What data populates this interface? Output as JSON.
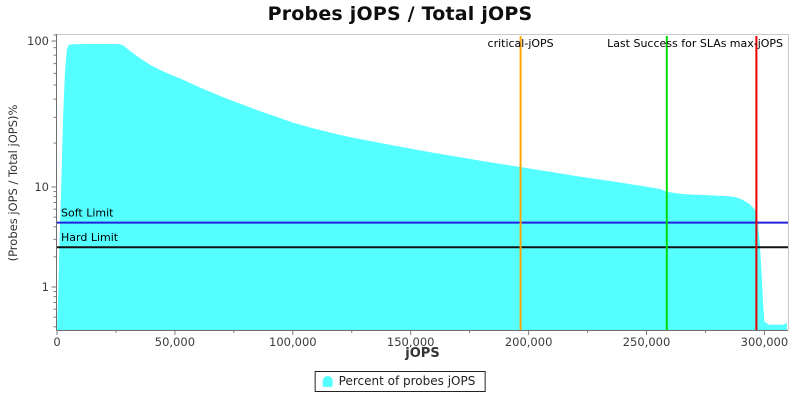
{
  "chart_data": {
    "type": "area",
    "title": "Probes jOPS / Total jOPS",
    "x_axis": {
      "label": "jOPS",
      "min": 0,
      "max": 310000,
      "major_ticks": [
        {
          "value": 0,
          "label": "0"
        },
        {
          "value": 50000,
          "label": "50,000"
        },
        {
          "value": 100000,
          "label": "100,000"
        },
        {
          "value": 150000,
          "label": "150,000"
        },
        {
          "value": 200000,
          "label": "200,000"
        },
        {
          "value": 250000,
          "label": "250,000"
        },
        {
          "value": 300000,
          "label": "300,000"
        }
      ],
      "minor_tick_step": 25000
    },
    "y_axis": {
      "label": "(Probes jOPS / Total jOPS)%",
      "scale": "log",
      "range": [
        0.37,
        112
      ],
      "major_ticks": [
        {
          "value": 1,
          "label": "1"
        },
        {
          "value": 10,
          "label": "10"
        },
        {
          "value": 100,
          "label": "100"
        }
      ]
    },
    "series": [
      {
        "name": "Percent of probes jOPS",
        "color": "#55FFFF",
        "points": [
          [
            0,
            0.37
          ],
          [
            600,
            1.0
          ],
          [
            1100,
            3.0
          ],
          [
            1800,
            10
          ],
          [
            2600,
            30
          ],
          [
            3400,
            62
          ],
          [
            4200,
            88
          ],
          [
            5000,
            94
          ],
          [
            7000,
            95
          ],
          [
            10000,
            95.3
          ],
          [
            14000,
            95.4
          ],
          [
            18000,
            95.4
          ],
          [
            22000,
            95.4
          ],
          [
            26000,
            95.2
          ],
          [
            28000,
            93.5
          ],
          [
            30000,
            88
          ],
          [
            32000,
            83
          ],
          [
            34000,
            78.5
          ],
          [
            37000,
            73
          ],
          [
            40000,
            68
          ],
          [
            44000,
            63
          ],
          [
            48000,
            59
          ],
          [
            52000,
            55.5
          ],
          [
            56000,
            52
          ],
          [
            60000,
            48.5
          ],
          [
            65000,
            44.8
          ],
          [
            70000,
            41.5
          ],
          [
            75000,
            38.6
          ],
          [
            80000,
            36
          ],
          [
            85000,
            33.6
          ],
          [
            90000,
            31.5
          ],
          [
            95000,
            29.5
          ],
          [
            100000,
            27.6
          ],
          [
            108000,
            25.4
          ],
          [
            116000,
            23.6
          ],
          [
            124000,
            22
          ],
          [
            132000,
            20.8
          ],
          [
            140000,
            19.6
          ],
          [
            148000,
            18.6
          ],
          [
            156000,
            17.6
          ],
          [
            164000,
            16.7
          ],
          [
            172000,
            15.9
          ],
          [
            180000,
            15.1
          ],
          [
            188000,
            14.4
          ],
          [
            196600,
            13.7
          ],
          [
            204000,
            13.1
          ],
          [
            212000,
            12.5
          ],
          [
            220000,
            11.9
          ],
          [
            228000,
            11.4
          ],
          [
            236000,
            10.9
          ],
          [
            244000,
            10.4
          ],
          [
            252000,
            9.9
          ],
          [
            256000,
            9.5
          ],
          [
            258600,
            9.0
          ],
          [
            262000,
            8.7
          ],
          [
            266000,
            8.5
          ],
          [
            270000,
            8.4
          ],
          [
            275000,
            8.3
          ],
          [
            280000,
            8.2
          ],
          [
            285000,
            8.1
          ],
          [
            288000,
            7.9
          ],
          [
            291000,
            7.4
          ],
          [
            293500,
            6.8
          ],
          [
            295000,
            6.3
          ],
          [
            296000,
            5.9
          ],
          [
            296600,
            5.4
          ],
          [
            297300,
            4.2
          ],
          [
            298000,
            2.8
          ],
          [
            298700,
            1.5
          ],
          [
            299400,
            0.7
          ],
          [
            300000,
            0.45
          ],
          [
            302000,
            0.42
          ],
          [
            305000,
            0.42
          ],
          [
            308000,
            0.42
          ],
          [
            309500,
            0.44
          ]
        ]
      }
    ],
    "vertical_annotations": [
      {
        "name": "critical-jops",
        "label": "critical-jOPS",
        "jops": 196600,
        "color": "#FFA500"
      },
      {
        "name": "last-success-for-slas",
        "label": "Last Success for SLAs",
        "jops": 258600,
        "color": "#00DC00"
      },
      {
        "name": "max-jops",
        "label": "max-jOPS",
        "jops": 296600,
        "color": "#E80000"
      }
    ],
    "horizontal_annotations": [
      {
        "name": "soft-limit",
        "label": "Soft Limit",
        "percent": 4.4,
        "color": "#2222DD"
      },
      {
        "name": "hard-limit",
        "label": "Hard Limit",
        "percent": 2.5,
        "color": "#141414"
      }
    ],
    "legend": {
      "label": "Percent of probes jOPS",
      "marker_color": "#55FFFF",
      "position": "bottom"
    }
  }
}
